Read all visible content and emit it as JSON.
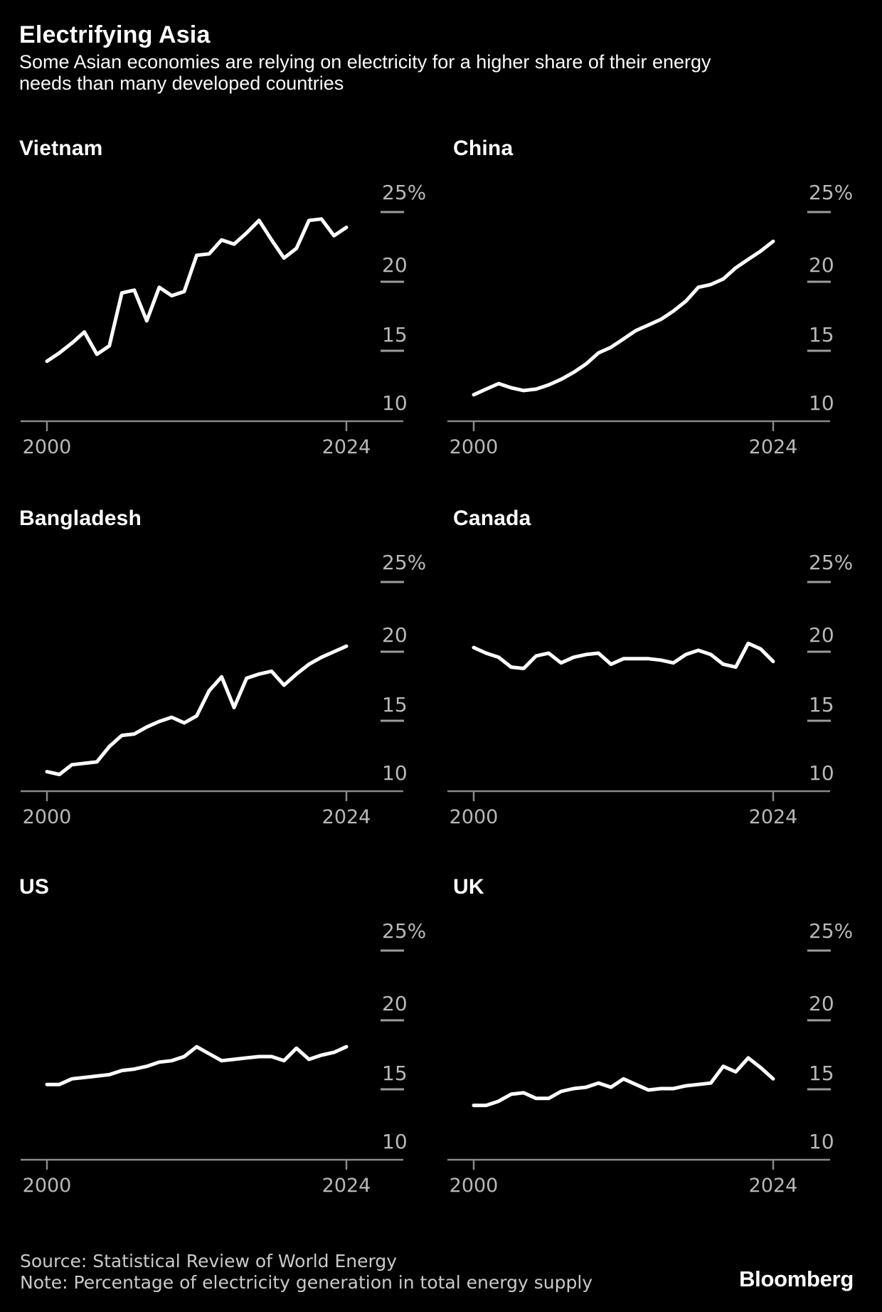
{
  "header": {
    "title": "Electrifying Asia",
    "subtitle": "Some Asian economies are relying on electricity for a higher share of their energy needs than many developed countries"
  },
  "chart_data": {
    "type": "line",
    "layout": "small multiples, 2 columns x 3 rows, shared axes",
    "title": "Electrifying Asia",
    "unit": "%",
    "ylim": [
      10,
      26.5
    ],
    "y_tick_values": [
      25,
      20,
      15,
      10
    ],
    "y_tick_labels": [
      "25%",
      "20",
      "15",
      "10"
    ],
    "x_tick_labels": [
      "2000",
      "2024"
    ],
    "grid": "short right-side dashes at each y tick, bottom axis with 2000/2024 ticks",
    "line_color": "#ffffff",
    "background_color": "#000000",
    "x": [
      2000,
      2001,
      2002,
      2003,
      2004,
      2005,
      2006,
      2007,
      2008,
      2009,
      2010,
      2011,
      2012,
      2013,
      2014,
      2015,
      2016,
      2017,
      2018,
      2019,
      2020,
      2021,
      2022,
      2023,
      2024
    ],
    "series": [
      {
        "name": "Vietnam",
        "values": [
          14.3,
          14.9,
          15.6,
          16.4,
          14.8,
          15.4,
          19.2,
          19.4,
          17.2,
          19.6,
          19.0,
          19.3,
          21.9,
          22.0,
          23.0,
          22.7,
          23.5,
          24.4,
          23.0,
          21.7,
          22.4,
          24.4,
          24.5,
          23.3,
          23.9
        ]
      },
      {
        "name": "China",
        "values": [
          11.9,
          12.3,
          12.7,
          12.4,
          12.2,
          12.3,
          12.6,
          13.0,
          13.5,
          14.1,
          14.9,
          15.3,
          15.9,
          16.5,
          16.9,
          17.3,
          17.9,
          18.6,
          19.6,
          19.8,
          20.2,
          21.0,
          21.6,
          22.2,
          22.9
        ]
      },
      {
        "name": "Bangladesh",
        "values": [
          11.4,
          11.2,
          11.9,
          12.0,
          12.1,
          13.2,
          14.0,
          14.1,
          14.6,
          15.0,
          15.3,
          14.9,
          15.4,
          17.2,
          18.2,
          16.0,
          18.1,
          18.4,
          18.6,
          17.6,
          18.4,
          19.1,
          19.6,
          20.0,
          20.4
        ]
      },
      {
        "name": "Canada",
        "values": [
          20.3,
          19.9,
          19.6,
          18.9,
          18.8,
          19.7,
          19.9,
          19.2,
          19.6,
          19.8,
          19.9,
          19.1,
          19.5,
          19.5,
          19.5,
          19.4,
          19.2,
          19.8,
          20.1,
          19.8,
          19.1,
          18.9,
          20.6,
          20.2,
          19.3
        ]
      },
      {
        "name": "US",
        "values": [
          15.4,
          15.4,
          15.8,
          15.9,
          16.0,
          16.1,
          16.4,
          16.5,
          16.7,
          17.0,
          17.1,
          17.4,
          18.1,
          17.6,
          17.1,
          17.2,
          17.3,
          17.4,
          17.4,
          17.1,
          18.0,
          17.2,
          17.5,
          17.7,
          18.1
        ]
      },
      {
        "name": "UK",
        "values": [
          13.9,
          13.9,
          14.2,
          14.7,
          14.8,
          14.4,
          14.4,
          14.9,
          15.1,
          15.2,
          15.5,
          15.2,
          15.8,
          15.4,
          15.0,
          15.1,
          15.1,
          15.3,
          15.4,
          15.5,
          16.7,
          16.3,
          17.3,
          16.6,
          15.8
        ]
      }
    ]
  },
  "footer": {
    "source": "Source: Statistical Review of World Energy",
    "note": "Note: Percentage of electricity generation in total energy supply",
    "brand": "Bloomberg"
  }
}
